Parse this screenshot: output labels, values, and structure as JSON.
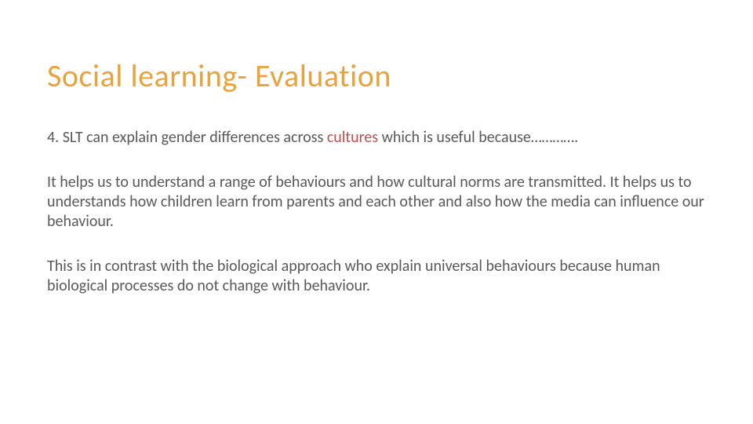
{
  "slide": {
    "title": "Social learning- Evaluation",
    "title_color": "#e8a33d",
    "title_fontsize": 40,
    "body_color": "#595959",
    "body_fontsize": 20,
    "highlight_color": "#c0504d",
    "background": "#ffffff",
    "paragraphs": [
      {
        "pre": "4. SLT can explain gender differences across ",
        "highlight": "cultures",
        "post": " which is useful because…………."
      },
      {
        "pre": "It helps us to understand a range of behaviours and how cultural norms are transmitted. It helps us to understands how children learn from parents and each other and also how the media can influence our behaviour.",
        "highlight": "",
        "post": ""
      },
      {
        "pre": "This is in contrast with the biological approach who explain universal behaviours because human biological processes do not change with behaviour.",
        "highlight": "",
        "post": ""
      }
    ]
  }
}
